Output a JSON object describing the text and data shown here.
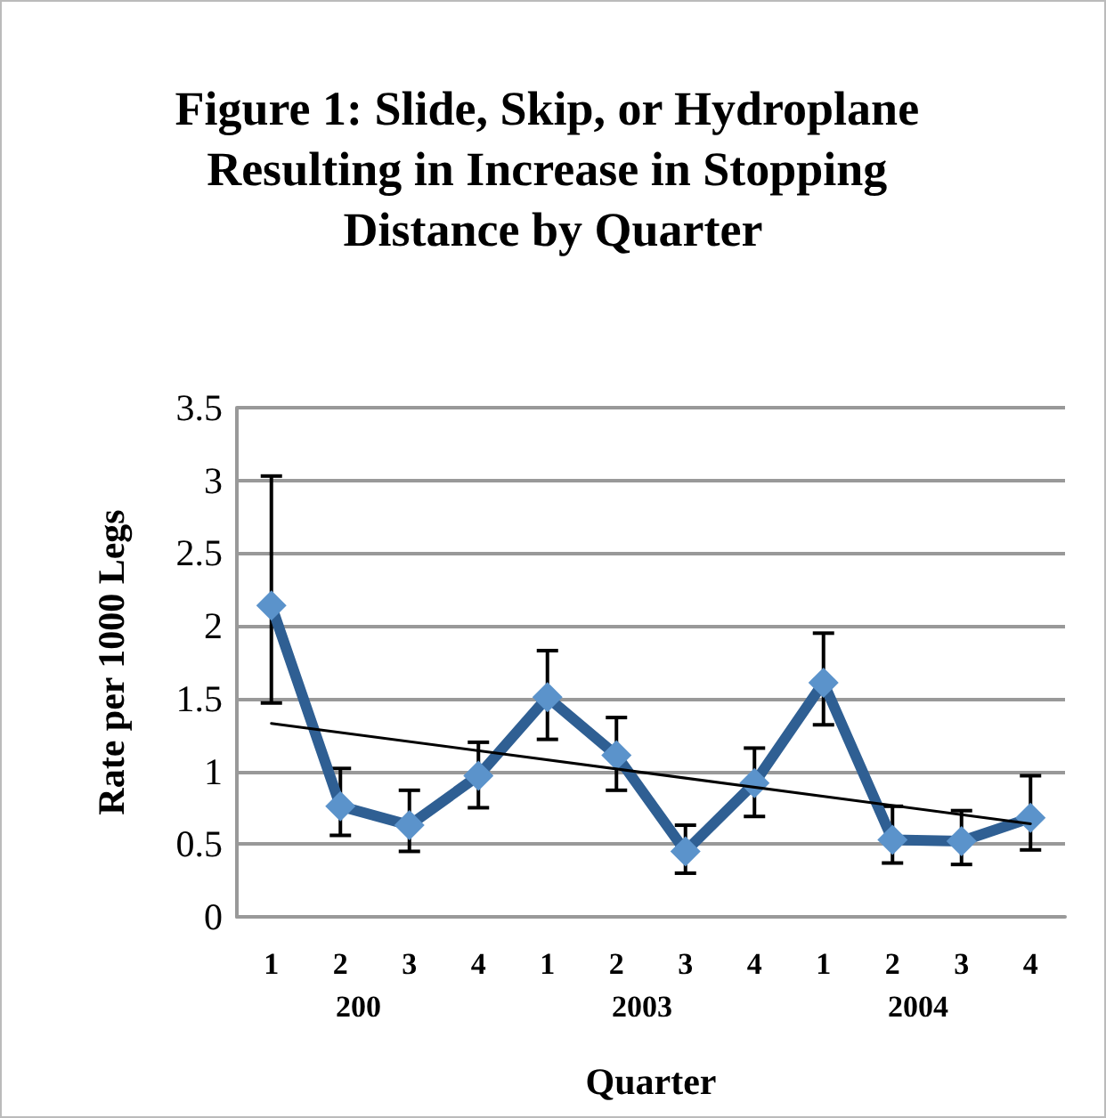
{
  "chart_data": {
    "type": "line",
    "title": "Figure 1: Slide, Skip, or Hydroplane Resulting in Increase in Stopping Distance by Quarter",
    "xlabel": "Quarter",
    "ylabel": "Rate per 1000 Legs",
    "categories": [
      "1",
      "2",
      "3",
      "4",
      "1",
      "2",
      "3",
      "4",
      "1",
      "2",
      "3",
      "4"
    ],
    "series": [
      {
        "color": "#2f5f93",
        "marker": "diamond",
        "values": [
          2.14,
          0.76,
          0.63,
          0.97,
          1.51,
          1.11,
          0.45,
          0.92,
          1.61,
          0.53,
          0.52,
          0.68
        ],
        "errors": [
          [
            1.47,
            3.03
          ],
          [
            0.56,
            1.02
          ],
          [
            0.45,
            0.87
          ],
          [
            0.75,
            1.2
          ],
          [
            1.22,
            1.83
          ],
          [
            0.87,
            1.37
          ],
          [
            0.3,
            0.63
          ],
          [
            0.69,
            1.16
          ],
          [
            1.32,
            1.95
          ],
          [
            0.37,
            0.76
          ],
          [
            0.36,
            0.73
          ],
          [
            0.46,
            0.97
          ]
        ]
      },
      {
        "type": "line",
        "color": "#000000",
        "marker": "none",
        "values": [
          1.33,
          null,
          null,
          null,
          null,
          null,
          null,
          null,
          null,
          null,
          null,
          0.64
        ]
      }
    ],
    "annotations": [
      "200",
      "2003",
      "2004"
    ],
    "ylim": [
      0,
      3.5
    ],
    "yticks": [
      0,
      0.5,
      1,
      1.5,
      2,
      2.5,
      3,
      3.5
    ],
    "grid": "y"
  }
}
